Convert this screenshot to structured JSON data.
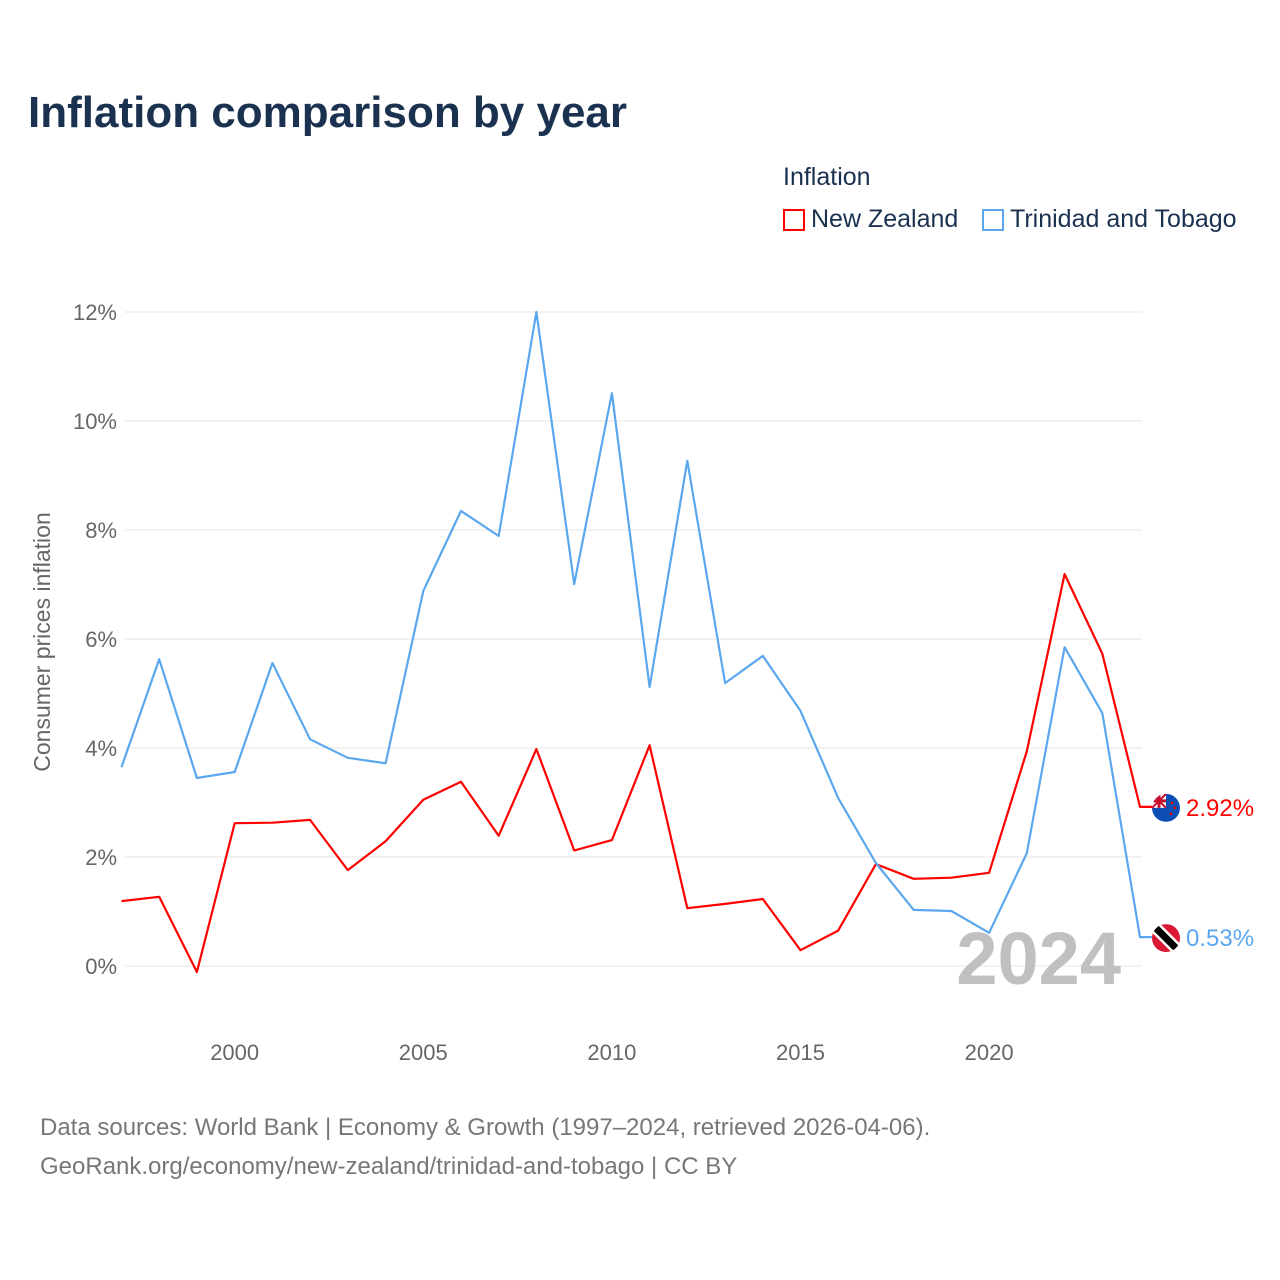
{
  "chart_data": {
    "type": "line",
    "title": "Inflation comparison by year",
    "legend_title": "Inflation",
    "legend_placement": "top-right",
    "ylabel": "Consumer prices inflation",
    "xlabel": "",
    "xlim": [
      1997,
      2024
    ],
    "ylim": [
      -1.2,
      12.2
    ],
    "grid": true,
    "x_ticks": [
      2000,
      2005,
      2010,
      2015,
      2020
    ],
    "y_ticks": [
      0,
      2,
      4,
      6,
      8,
      10,
      12
    ],
    "y_tick_labels": [
      "0%",
      "2%",
      "4%",
      "6%",
      "8%",
      "10%",
      "12%"
    ],
    "year_watermark": "2024",
    "x": [
      1997,
      1998,
      1999,
      2000,
      2001,
      2002,
      2003,
      2004,
      2005,
      2006,
      2007,
      2008,
      2009,
      2010,
      2011,
      2012,
      2013,
      2014,
      2015,
      2016,
      2017,
      2018,
      2019,
      2020,
      2021,
      2022,
      2023,
      2024
    ],
    "series": [
      {
        "name": "New Zealand",
        "color": "#ff0000",
        "end_label": "2.92%",
        "flag": "new-zealand-flag",
        "values": [
          1.19,
          1.27,
          -0.11,
          2.62,
          2.63,
          2.68,
          1.76,
          2.29,
          3.05,
          3.38,
          2.39,
          3.98,
          2.12,
          2.31,
          4.05,
          1.06,
          1.14,
          1.23,
          0.29,
          0.65,
          1.87,
          1.6,
          1.62,
          1.71,
          3.94,
          7.19,
          5.73,
          2.92
        ]
      },
      {
        "name": "Trinidad and Tobago",
        "color": "#5ba7ee",
        "end_label": "0.53%",
        "flag": "trinidad-and-tobago-flag",
        "values": [
          3.65,
          5.63,
          3.45,
          3.56,
          5.56,
          4.16,
          3.82,
          3.72,
          6.88,
          8.35,
          7.89,
          12.0,
          7.01,
          10.51,
          5.12,
          9.27,
          5.19,
          5.69,
          4.68,
          3.08,
          1.89,
          1.03,
          1.01,
          0.61,
          2.07,
          5.85,
          4.64,
          0.53
        ]
      }
    ]
  },
  "footer": {
    "line1": "Data sources: World Bank | Economy & Growth (1997–2024, retrieved 2026-04-06).",
    "line2": "GeoRank.org/economy/new-zealand/trinidad-and-tobago | CC BY"
  }
}
